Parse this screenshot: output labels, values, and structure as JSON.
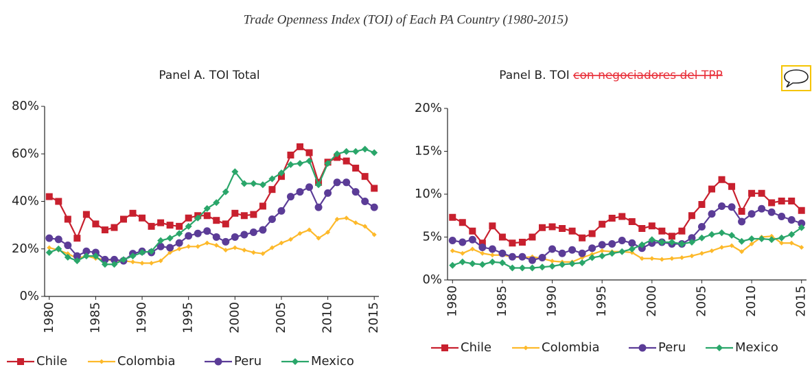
{
  "title": "Trade Openness Index (TOI) of Each PA Country (1980-2015)",
  "chart_data": [
    {
      "type": "line",
      "title": "Panel A. TOI Total",
      "x": [
        1980,
        1981,
        1982,
        1983,
        1984,
        1985,
        1986,
        1987,
        1988,
        1989,
        1990,
        1991,
        1992,
        1993,
        1994,
        1995,
        1996,
        1997,
        1998,
        1999,
        2000,
        2001,
        2002,
        2003,
        2004,
        2005,
        2006,
        2007,
        2008,
        2009,
        2010,
        2011,
        2012,
        2013,
        2014,
        2015
      ],
      "xlim": [
        1979.5,
        2015.5
      ],
      "xticks": [
        1980,
        1985,
        1990,
        1995,
        2000,
        2005,
        2010,
        2015
      ],
      "ylim": [
        0,
        80
      ],
      "yticks": [
        {
          "value": 0,
          "label": "0%"
        },
        {
          "value": 20,
          "label": "20%"
        },
        {
          "value": 40,
          "label": "40%"
        },
        {
          "value": 60,
          "label": "60%"
        },
        {
          "value": 80,
          "label": "80%"
        }
      ],
      "legend": "bottom",
      "series": [
        {
          "name": "Chile",
          "color": "#c8202e",
          "marker": "square",
          "values": [
            42,
            40,
            32.5,
            24.5,
            34.5,
            30.5,
            28,
            29,
            32.5,
            35,
            33,
            29.5,
            31,
            30,
            29.5,
            33,
            34,
            34,
            32,
            30.5,
            35,
            34,
            34.5,
            38,
            45,
            50.5,
            59.5,
            63,
            60.5,
            48,
            56.5,
            58.5,
            57,
            54,
            50.5,
            45.5
          ]
        },
        {
          "name": "Colombia",
          "color": "#fdb92a",
          "marker": "small-diamond",
          "values": [
            20.5,
            19.5,
            18,
            16,
            17,
            16,
            15.5,
            15,
            15,
            14.5,
            14,
            14,
            15,
            18.5,
            20,
            21,
            21,
            22.5,
            21.5,
            19.5,
            20.5,
            19.5,
            18.5,
            18,
            20.5,
            22.5,
            24,
            26.5,
            28,
            24.5,
            27,
            32.5,
            33,
            31,
            29.5,
            26
          ]
        },
        {
          "name": "Peru",
          "color": "#5b3c97",
          "marker": "circle",
          "values": [
            24.5,
            24,
            21.5,
            17,
            19,
            18.5,
            15.5,
            15.5,
            15,
            18,
            19,
            18.5,
            21,
            20.5,
            22.5,
            25.5,
            26.5,
            27.5,
            25,
            23,
            25,
            26,
            27,
            28,
            32.5,
            36,
            42,
            44,
            46,
            37.5,
            43.5,
            48,
            48,
            44,
            40,
            37.5
          ]
        },
        {
          "name": "Mexico",
          "color": "#2aa66a",
          "marker": "diamond",
          "values": [
            18.5,
            20,
            16.5,
            15,
            17,
            17,
            13.5,
            13.5,
            15.5,
            17,
            18.5,
            19,
            23.5,
            24.5,
            26.5,
            29.5,
            33,
            37,
            39.5,
            44,
            52.5,
            47.5,
            47.5,
            47,
            49.5,
            52,
            55.5,
            56,
            57,
            47,
            56,
            60,
            61,
            61,
            62,
            60.5
          ]
        }
      ]
    },
    {
      "type": "line",
      "title": "Panel B. TOI",
      "title_strike": "con negociadores del TPP",
      "x": [
        1980,
        1981,
        1982,
        1983,
        1984,
        1985,
        1986,
        1987,
        1988,
        1989,
        1990,
        1991,
        1992,
        1993,
        1994,
        1995,
        1996,
        1997,
        1998,
        1999,
        2000,
        2001,
        2002,
        2003,
        2004,
        2005,
        2006,
        2007,
        2008,
        2009,
        2010,
        2011,
        2012,
        2013,
        2014,
        2015
      ],
      "xlim": [
        1979.5,
        2015.5
      ],
      "xticks": [
        1980,
        1985,
        1990,
        1995,
        2000,
        2005,
        2010,
        2015
      ],
      "ylim": [
        0,
        20
      ],
      "yticks": [
        {
          "value": 0,
          "label": "0%"
        },
        {
          "value": 5,
          "label": "5%"
        },
        {
          "value": 10,
          "label": "10%"
        },
        {
          "value": 15,
          "label": "15%"
        },
        {
          "value": 20,
          "label": "20%"
        }
      ],
      "legend": "bottom",
      "series": [
        {
          "name": "Chile",
          "color": "#c8202e",
          "marker": "square",
          "values": [
            7.3,
            6.7,
            5.7,
            4.3,
            6.3,
            5,
            4.3,
            4.4,
            5,
            6.1,
            6.2,
            6,
            5.7,
            4.9,
            5.4,
            6.5,
            7.2,
            7.4,
            6.8,
            6,
            6.3,
            5.7,
            5.1,
            5.7,
            7.5,
            8.8,
            10.6,
            11.7,
            10.9,
            8,
            10.1,
            10.1,
            9,
            9.2,
            9.2,
            8.1
          ]
        },
        {
          "name": "Colombia",
          "color": "#fdb92a",
          "marker": "small-diamond",
          "values": [
            3.4,
            3.1,
            3.6,
            3.1,
            2.9,
            2.9,
            2.7,
            2.6,
            2.7,
            2.5,
            2.2,
            2.1,
            2.1,
            2.6,
            3,
            3.4,
            3.3,
            3.3,
            3.2,
            2.5,
            2.5,
            2.4,
            2.5,
            2.6,
            2.8,
            3.1,
            3.4,
            3.8,
            4,
            3.3,
            4.2,
            5,
            5.1,
            4.3,
            4.3,
            3.8
          ]
        },
        {
          "name": "Peru",
          "color": "#5b3c97",
          "marker": "circle",
          "values": [
            4.6,
            4.4,
            4.7,
            3.8,
            3.6,
            3.1,
            2.7,
            2.7,
            2.3,
            2.6,
            3.6,
            3.1,
            3.5,
            3.1,
            3.7,
            4.1,
            4.2,
            4.6,
            4.3,
            3.7,
            4.3,
            4.4,
            4.2,
            4.2,
            4.9,
            6.2,
            7.7,
            8.6,
            8.5,
            6.8,
            7.7,
            8.3,
            7.9,
            7.4,
            7,
            6.6
          ]
        },
        {
          "name": "Mexico",
          "color": "#2aa66a",
          "marker": "diamond",
          "values": [
            1.7,
            2.1,
            1.9,
            1.8,
            2.1,
            2,
            1.4,
            1.4,
            1.4,
            1.5,
            1.6,
            1.8,
            1.9,
            2,
            2.6,
            2.8,
            3.1,
            3.3,
            3.6,
            4.1,
            4.7,
            4.4,
            4.4,
            4.2,
            4.4,
            4.9,
            5.3,
            5.5,
            5.2,
            4.5,
            4.8,
            4.8,
            4.7,
            4.9,
            5.3,
            6.1
          ]
        }
      ]
    }
  ]
}
